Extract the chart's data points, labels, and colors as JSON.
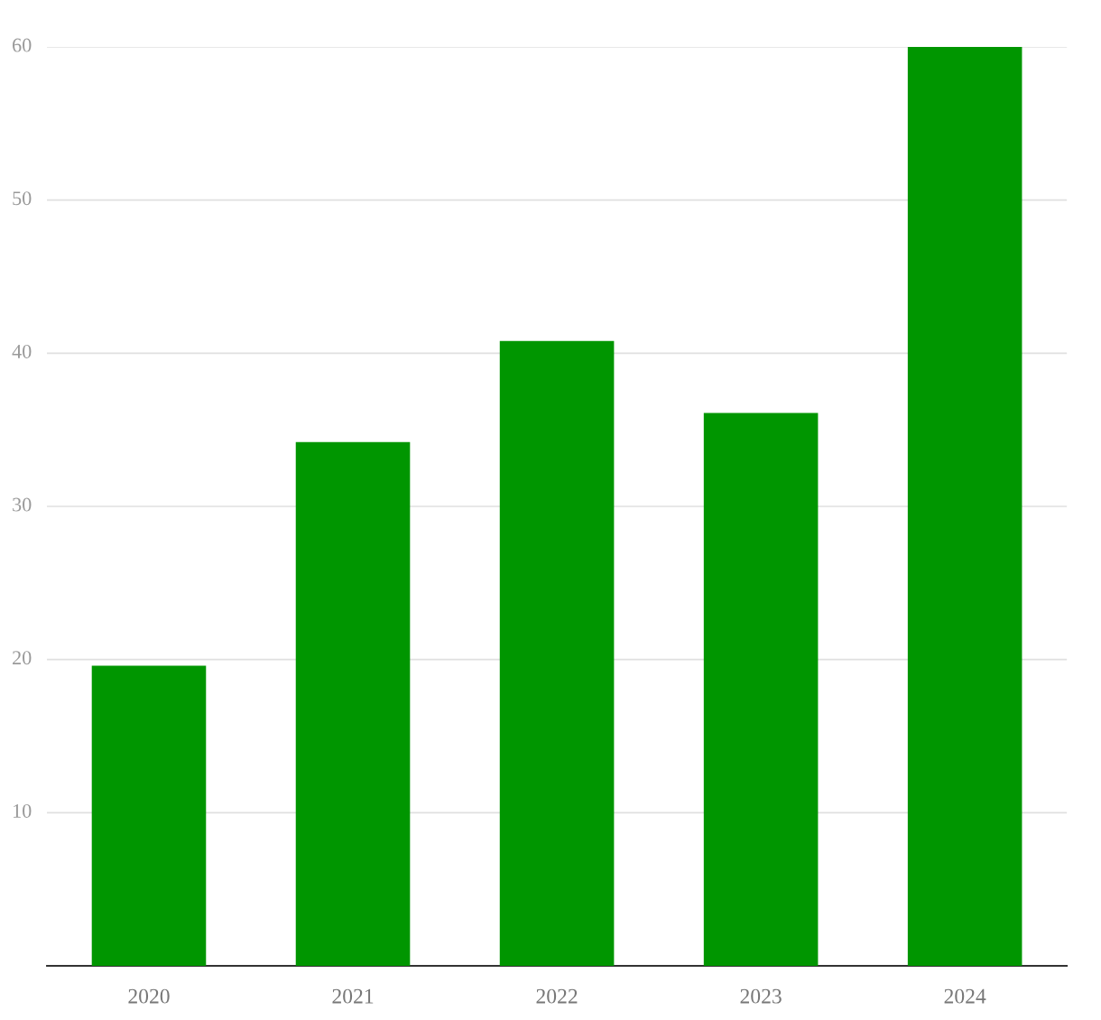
{
  "chart_data": {
    "type": "bar",
    "categories": [
      "2020",
      "2021",
      "2022",
      "2023",
      "2024"
    ],
    "values": [
      19.6,
      34.2,
      40.8,
      36.1,
      60
    ],
    "color": "#009600",
    "ylim": [
      0,
      60
    ],
    "yticks": [
      10,
      20,
      30,
      40,
      50,
      60
    ],
    "grid": "y"
  }
}
